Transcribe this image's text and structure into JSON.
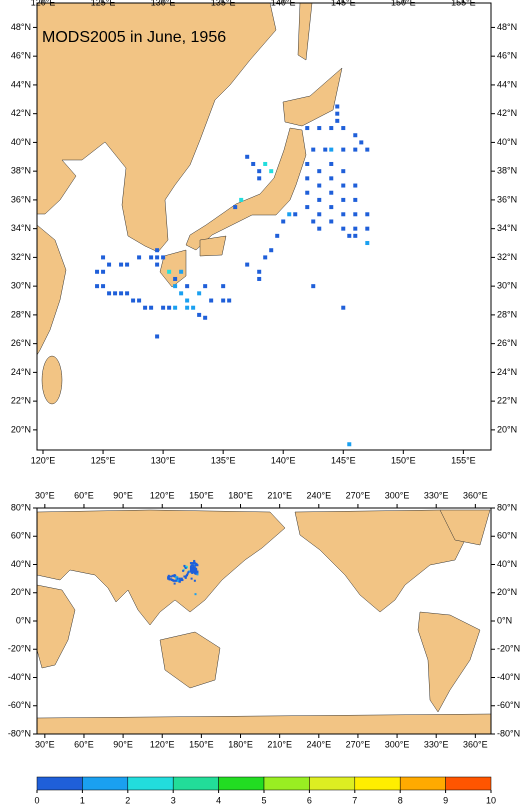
{
  "chart_data": [
    {
      "type": "scatter",
      "title": "MODS2005 in June, 1956",
      "x": [
        144.5,
        144.5,
        144.5,
        144,
        143,
        142,
        145,
        146,
        146.5,
        147,
        146,
        145,
        144,
        143.5,
        142.5,
        142,
        142,
        142,
        142,
        142.5,
        143,
        143,
        143,
        143,
        143,
        144,
        144,
        144,
        144,
        144,
        145,
        145,
        145,
        145,
        145,
        146,
        146,
        146,
        146,
        146,
        147,
        147,
        147,
        145.5,
        141,
        140.5,
        140,
        139.5,
        139,
        138.5,
        138,
        138,
        137,
        137.5,
        138,
        138.5,
        139,
        138,
        136.5,
        136,
        129.5,
        130,
        129.5,
        130.5,
        131,
        131,
        131.5,
        132,
        132.5,
        133,
        133.5,
        132,
        131,
        130.5,
        130,
        131.5,
        132,
        133,
        135,
        135.5,
        135,
        134,
        124.5,
        125,
        125.5,
        126,
        126.5,
        127,
        127.5,
        128,
        128.5,
        129,
        125,
        125.5,
        126.5,
        127,
        128,
        129,
        129.5,
        125,
        124.5,
        129.5,
        137,
        142.5,
        145,
        145.5,
        133.5
      ],
      "y": [
        42.5,
        42,
        41.5,
        41,
        41,
        41,
        41,
        40.5,
        40,
        39.5,
        39.5,
        39.5,
        39.5,
        39.5,
        39.5,
        38.5,
        37.5,
        36.5,
        35.5,
        34.5,
        38,
        37,
        36,
        35,
        34,
        38.5,
        37.5,
        36.5,
        35.5,
        34.5,
        38,
        37,
        36,
        35,
        34,
        37,
        36,
        35,
        34,
        33.5,
        35,
        34,
        33,
        33.5,
        35,
        35,
        34.5,
        33.5,
        32.5,
        32,
        31,
        30.5,
        39,
        38.5,
        38,
        38.5,
        38,
        37.5,
        36,
        35.5,
        32.5,
        32,
        31.5,
        31,
        30.5,
        30,
        29.5,
        29,
        28.5,
        28,
        27.8,
        28.5,
        28.5,
        28.5,
        28.5,
        31,
        30,
        29.5,
        29,
        29,
        30,
        29,
        30,
        30,
        29.5,
        29.5,
        29.5,
        29.5,
        29,
        29,
        28.5,
        28.5,
        31,
        31.5,
        31.5,
        31.5,
        32,
        32,
        32,
        32,
        31,
        26.5,
        31.5,
        30,
        28.5,
        19,
        30
      ],
      "values": [
        0.5,
        0.5,
        0.5,
        0.5,
        0.5,
        0.5,
        0.5,
        0.5,
        0.5,
        0.5,
        0.5,
        0.5,
        1.5,
        0.5,
        0.5,
        0.5,
        0.5,
        0.5,
        0.5,
        0.5,
        0.5,
        0.5,
        0.5,
        0.5,
        0.5,
        0.5,
        0.5,
        0.5,
        0.5,
        0.5,
        0.5,
        0.5,
        0.5,
        0.5,
        0.5,
        0.5,
        0.5,
        0.5,
        0.5,
        0.5,
        0.5,
        0.5,
        1.5,
        0.5,
        0.5,
        1.5,
        0.5,
        0.5,
        0.5,
        0.5,
        0.5,
        0.5,
        0.5,
        0.5,
        0.5,
        2.5,
        2.5,
        0.5,
        2.5,
        0.5,
        0.5,
        0.5,
        0.5,
        2.5,
        0.5,
        1.5,
        1.5,
        1.5,
        1.5,
        0.5,
        0.5,
        1.5,
        1.5,
        0.5,
        0.5,
        1.5,
        0.5,
        1.5,
        0.5,
        0.5,
        0.5,
        0.5,
        0.5,
        0.5,
        0.5,
        0.5,
        0.5,
        0.5,
        0.5,
        0.5,
        0.5,
        0.5,
        0.5,
        0.5,
        0.5,
        0.5,
        0.5,
        0.5,
        0.5,
        0.5,
        0.5,
        0.5,
        0.5,
        0.5,
        0.5,
        1.5,
        0.5
      ],
      "xlim": [
        119.5,
        157.3
      ],
      "ylim": [
        18.6,
        49.7
      ],
      "xticks": [
        {
          "value": 120,
          "label": "120°E"
        },
        {
          "value": 125,
          "label": "125°E"
        },
        {
          "value": 130,
          "label": "130°E"
        },
        {
          "value": 135,
          "label": "135°E"
        },
        {
          "value": 140,
          "label": "140°E"
        },
        {
          "value": 145,
          "label": "145°E"
        },
        {
          "value": 150,
          "label": "150°E"
        },
        {
          "value": 155,
          "label": "155°E"
        }
      ],
      "yticks": [
        {
          "value": 20,
          "label": "20°N"
        },
        {
          "value": 22,
          "label": "22°N"
        },
        {
          "value": 24,
          "label": "24°N"
        },
        {
          "value": 26,
          "label": "26°N"
        },
        {
          "value": 28,
          "label": "28°N"
        },
        {
          "value": 30,
          "label": "30°N"
        },
        {
          "value": 32,
          "label": "32°N"
        },
        {
          "value": 34,
          "label": "34°N"
        },
        {
          "value": 36,
          "label": "36°N"
        },
        {
          "value": 38,
          "label": "38°N"
        },
        {
          "value": 40,
          "label": "40°N"
        },
        {
          "value": 42,
          "label": "42°N"
        },
        {
          "value": 44,
          "label": "44°N"
        },
        {
          "value": 46,
          "label": "46°N"
        },
        {
          "value": 48,
          "label": "48°N"
        }
      ],
      "colorbar": {
        "levels": [
          0,
          1,
          2,
          3,
          4,
          5,
          6,
          7,
          8,
          9,
          10
        ],
        "colors": [
          "#1f5fd9",
          "#1aa0f0",
          "#22dddd",
          "#22dd99",
          "#22dd22",
          "#99ee22",
          "#ddee22",
          "#ffee00",
          "#ffaa00",
          "#ff5500"
        ]
      }
    },
    {
      "type": "overview",
      "xlim": [
        24,
        372
      ],
      "ylim": [
        -80,
        80
      ],
      "xticks": [
        {
          "value": 30,
          "label": "30°E"
        },
        {
          "value": 60,
          "label": "60°E"
        },
        {
          "value": 90,
          "label": "90°E"
        },
        {
          "value": 120,
          "label": "120°E"
        },
        {
          "value": 150,
          "label": "150°E"
        },
        {
          "value": 180,
          "label": "180°E"
        },
        {
          "value": 210,
          "label": "210°E"
        },
        {
          "value": 240,
          "label": "240°E"
        },
        {
          "value": 270,
          "label": "270°E"
        },
        {
          "value": 300,
          "label": "300°E"
        },
        {
          "value": 330,
          "label": "330°E"
        },
        {
          "value": 360,
          "label": "360°E"
        }
      ],
      "yticks": [
        {
          "value": 80,
          "label": "80°N"
        },
        {
          "value": 60,
          "label": "60°N"
        },
        {
          "value": 40,
          "label": "40°N"
        },
        {
          "value": 20,
          "label": "20°N"
        },
        {
          "value": 0,
          "label": "0°N"
        },
        {
          "value": -20,
          "label": "-20°N"
        },
        {
          "value": -40,
          "label": "-40°N"
        },
        {
          "value": -60,
          "label": "-60°N"
        },
        {
          "value": -80,
          "label": "-80°N"
        }
      ]
    }
  ]
}
